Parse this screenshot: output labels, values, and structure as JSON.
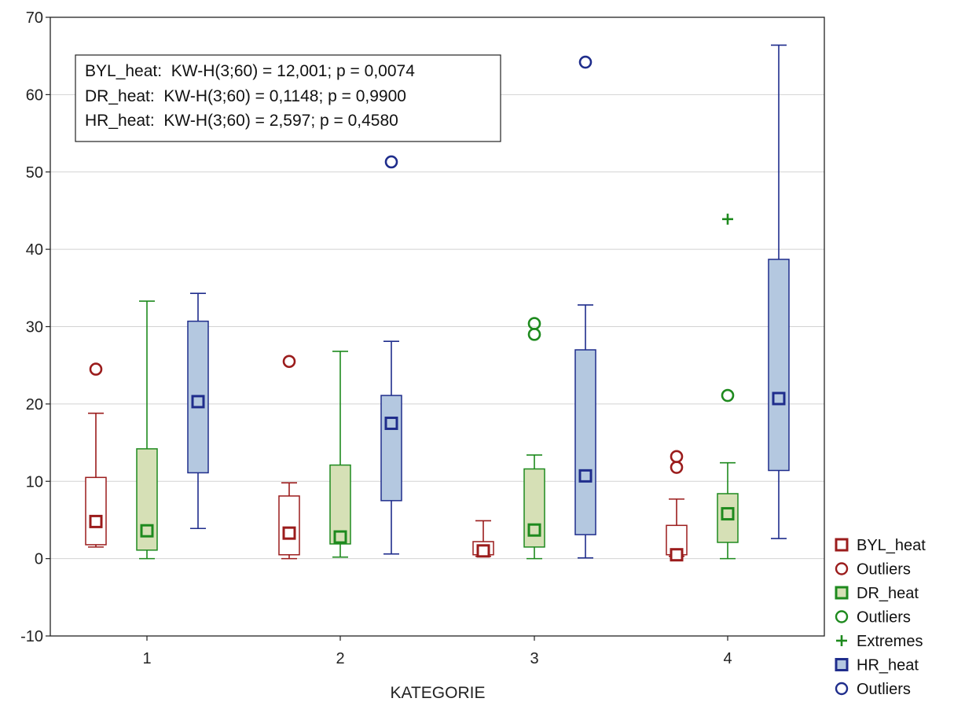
{
  "chart_data": {
    "type": "boxplot",
    "xlabel": "KATEGORIE",
    "ylabel": "",
    "ylim": [
      -10,
      70
    ],
    "yticks": [
      -10,
      0,
      10,
      20,
      30,
      40,
      50,
      60,
      70
    ],
    "categories": [
      "1",
      "2",
      "3",
      "4"
    ],
    "grid": "horizontal",
    "legend_position": "bottom-right",
    "stat_lines": [
      "BYL_heat:  KW-H(3;60) = 12,001; p = 0,0074",
      "DR_heat:  KW-H(3;60) = 0,1148; p = 0,9900",
      "HR_heat:  KW-H(3;60) = 2,597; p = 0,4580"
    ],
    "series": [
      {
        "name": "BYL_heat",
        "stroke": "#9b1c1c",
        "fill": "#ffffff",
        "boxes": [
          {
            "min": 1.5,
            "q1": 1.8,
            "median": 4.8,
            "q3": 10.5,
            "max": 18.8
          },
          {
            "min": 0.0,
            "q1": 0.5,
            "median": 3.3,
            "q3": 8.1,
            "max": 9.8
          },
          {
            "min": 0.3,
            "q1": 0.5,
            "median": 1.0,
            "q3": 2.2,
            "max": 4.9
          },
          {
            "min": 0.3,
            "q1": 0.5,
            "median": 0.5,
            "q3": 4.3,
            "max": 7.7
          }
        ],
        "outliers": [
          [
            24.5
          ],
          [
            25.5
          ],
          [],
          [
            13.2,
            11.8
          ]
        ],
        "extremes": [
          [],
          [],
          [],
          []
        ]
      },
      {
        "name": "DR_heat",
        "stroke": "#1e8a1e",
        "fill": "#d6e0b6",
        "boxes": [
          {
            "min": 0.0,
            "q1": 1.1,
            "median": 3.6,
            "q3": 14.2,
            "max": 33.3
          },
          {
            "min": 0.2,
            "q1": 1.9,
            "median": 2.8,
            "q3": 12.1,
            "max": 26.8
          },
          {
            "min": 0.0,
            "q1": 1.5,
            "median": 3.7,
            "q3": 11.6,
            "max": 13.4
          },
          {
            "min": 0.0,
            "q1": 2.1,
            "median": 5.8,
            "q3": 8.4,
            "max": 12.4
          }
        ],
        "outliers": [
          [],
          [],
          [
            30.4,
            29.0
          ],
          [
            21.1
          ]
        ],
        "extremes": [
          [],
          [],
          [],
          [
            43.9
          ]
        ]
      },
      {
        "name": "HR_heat",
        "stroke": "#1f2d8c",
        "fill": "#b4c8e0",
        "boxes": [
          {
            "min": 3.9,
            "q1": 11.1,
            "median": 20.3,
            "q3": 30.7,
            "max": 34.3
          },
          {
            "min": 0.6,
            "q1": 7.5,
            "median": 17.5,
            "q3": 21.1,
            "max": 28.1
          },
          {
            "min": 0.1,
            "q1": 3.1,
            "median": 10.7,
            "q3": 27.0,
            "max": 32.8
          },
          {
            "min": 2.6,
            "q1": 11.4,
            "median": 20.7,
            "q3": 38.7,
            "max": 66.4
          }
        ],
        "outliers": [
          [],
          [
            51.3
          ],
          [
            64.2
          ],
          []
        ],
        "extremes": [
          [],
          [],
          [],
          []
        ]
      }
    ],
    "legend": [
      {
        "label": "BYL_heat",
        "marker": "square",
        "color": "#9b1c1c",
        "fill": "#ffffff"
      },
      {
        "label": "Outliers",
        "marker": "circle",
        "color": "#9b1c1c"
      },
      {
        "label": "DR_heat",
        "marker": "square",
        "color": "#1e8a1e",
        "fill": "#d6e0b6"
      },
      {
        "label": "Outliers",
        "marker": "circle",
        "color": "#1e8a1e"
      },
      {
        "label": "Extremes",
        "marker": "plus",
        "color": "#1e8a1e"
      },
      {
        "label": "HR_heat",
        "marker": "square",
        "color": "#1f2d8c",
        "fill": "#b4c8e0"
      },
      {
        "label": "Outliers",
        "marker": "circle",
        "color": "#1f2d8c"
      }
    ]
  }
}
